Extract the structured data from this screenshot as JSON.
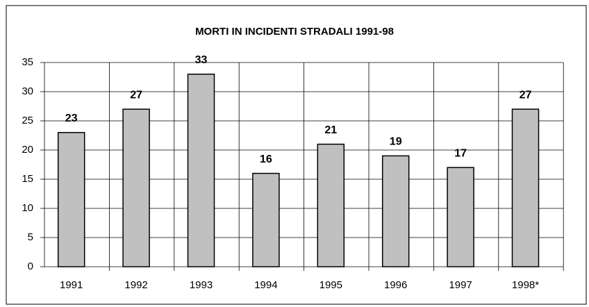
{
  "chart_data": {
    "type": "bar",
    "title": "MORTI IN INCIDENTI STRADALI 1991-98",
    "categories": [
      "1991",
      "1992",
      "1993",
      "1994",
      "1995",
      "1996",
      "1997",
      "1998*"
    ],
    "values": [
      23,
      27,
      33,
      16,
      21,
      19,
      17,
      27
    ],
    "color": "#c0c0c0",
    "ylim": [
      0,
      35
    ],
    "yticks": [
      0,
      5,
      10,
      15,
      20,
      25,
      30,
      35
    ],
    "grid": true
  }
}
